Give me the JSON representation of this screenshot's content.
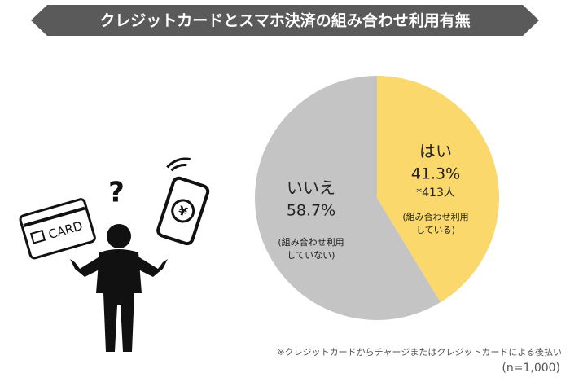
{
  "chart_data": {
    "type": "pie",
    "title": "クレジットカードとスマホ決済の組み合わせ利用有無",
    "categories": [
      "はい",
      "いいえ"
    ],
    "values": [
      41.3,
      58.7
    ],
    "value_labels": [
      "41.3%",
      "58.7%"
    ],
    "colors": [
      "#fbd86b",
      "#c4c4c4"
    ],
    "count_labels": [
      "*413人",
      null
    ],
    "notes": [
      [
        "(組み合わせ利用",
        "している)"
      ],
      [
        "(組み合わせ利用",
        "していない)"
      ]
    ],
    "footnote": "※クレジットカードからチャージまたはクレジットカードによる後払い",
    "sample": "(n=1,000)",
    "illustration": {
      "question": "?",
      "card": "CARD",
      "currency": "¥"
    }
  }
}
